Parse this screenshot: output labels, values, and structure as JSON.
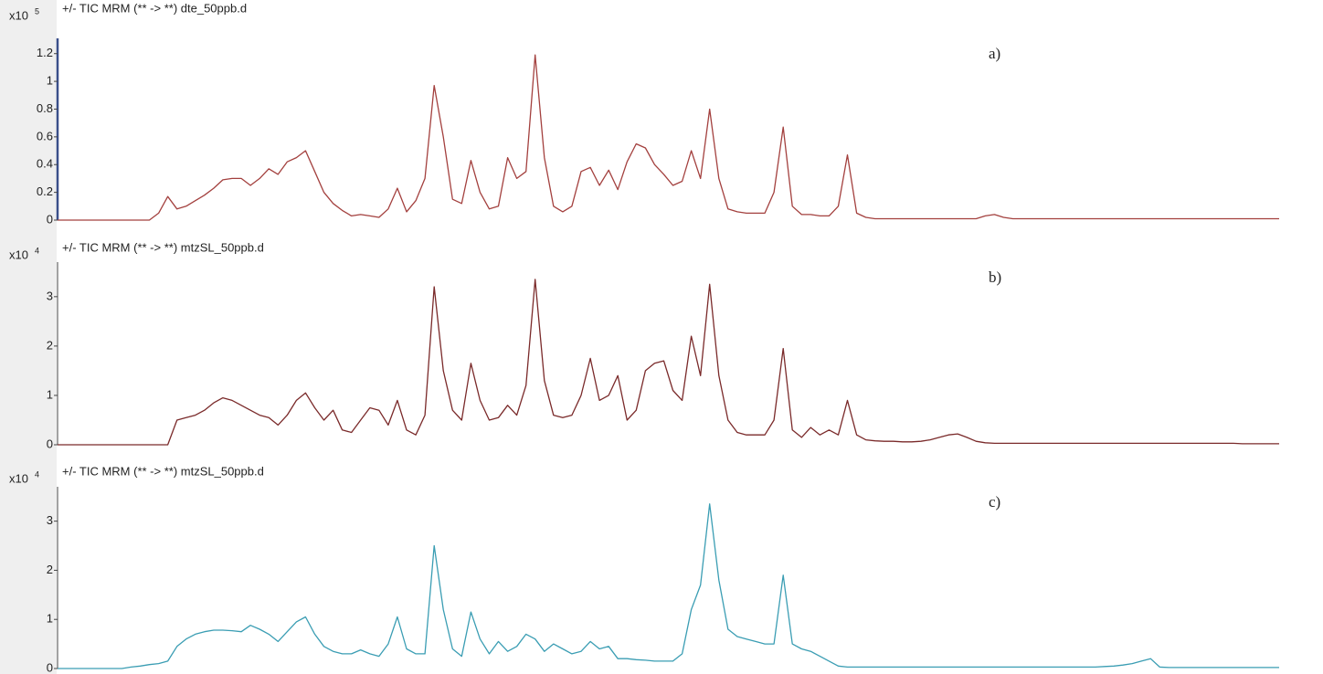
{
  "chart_data": [
    {
      "type": "line",
      "title": "+/- TIC MRM (** -> **) dte_50ppb.d",
      "y_multiplier": "x10",
      "y_exponent": 5,
      "annotation": "a)",
      "color": "#a3403e",
      "ylim": [
        0,
        1.31
      ],
      "yticks": [
        0,
        0.2,
        0.4,
        0.6,
        0.8,
        1,
        1.2
      ],
      "values": [
        0,
        0,
        0,
        0,
        0,
        0,
        0,
        0,
        0,
        0,
        0,
        0.05,
        0.17,
        0.08,
        0.1,
        0.14,
        0.18,
        0.23,
        0.29,
        0.3,
        0.3,
        0.25,
        0.3,
        0.37,
        0.33,
        0.42,
        0.45,
        0.5,
        0.35,
        0.2,
        0.12,
        0.07,
        0.03,
        0.04,
        0.03,
        0.02,
        0.08,
        0.23,
        0.06,
        0.14,
        0.3,
        0.97,
        0.6,
        0.15,
        0.12,
        0.43,
        0.2,
        0.08,
        0.1,
        0.45,
        0.3,
        0.35,
        1.19,
        0.45,
        0.1,
        0.06,
        0.1,
        0.35,
        0.38,
        0.25,
        0.36,
        0.22,
        0.42,
        0.55,
        0.52,
        0.4,
        0.33,
        0.25,
        0.28,
        0.5,
        0.3,
        0.8,
        0.3,
        0.08,
        0.06,
        0.05,
        0.05,
        0.05,
        0.2,
        0.67,
        0.1,
        0.04,
        0.04,
        0.03,
        0.03,
        0.1,
        0.47,
        0.05,
        0.02,
        0.01,
        0.01,
        0.01,
        0.01,
        0.01,
        0.01,
        0.01,
        0.01,
        0.01,
        0.01,
        0.01,
        0.01,
        0.03,
        0.04,
        0.02,
        0.01,
        0.01,
        0.01,
        0.01,
        0.01,
        0.01,
        0.01,
        0.01,
        0.01,
        0.01,
        0.01,
        0.01,
        0.01,
        0.01,
        0.01,
        0.01,
        0.01,
        0.01,
        0.01,
        0.01,
        0.01,
        0.01,
        0.01,
        0.01,
        0.01,
        0.01,
        0.01,
        0.01,
        0.01,
        0.01
      ]
    },
    {
      "type": "line",
      "title": "+/- TIC MRM (** -> **) mtzSL_50ppb.d",
      "y_multiplier": "x10",
      "y_exponent": 4,
      "annotation": "b)",
      "color": "#7a2a2a",
      "ylim": [
        0,
        3.7
      ],
      "yticks": [
        0,
        1,
        2,
        3
      ],
      "values": [
        0,
        0,
        0,
        0,
        0,
        0,
        0,
        0,
        0,
        0,
        0,
        0,
        0,
        0.5,
        0.55,
        0.6,
        0.7,
        0.85,
        0.95,
        0.9,
        0.8,
        0.7,
        0.6,
        0.55,
        0.4,
        0.6,
        0.9,
        1.05,
        0.75,
        0.5,
        0.7,
        0.3,
        0.25,
        0.5,
        0.75,
        0.7,
        0.4,
        0.9,
        0.3,
        0.2,
        0.6,
        3.2,
        1.5,
        0.7,
        0.5,
        1.65,
        0.9,
        0.5,
        0.55,
        0.8,
        0.6,
        1.2,
        3.35,
        1.3,
        0.6,
        0.55,
        0.6,
        1.0,
        1.75,
        0.9,
        1.0,
        1.4,
        0.5,
        0.7,
        1.5,
        1.65,
        1.7,
        1.1,
        0.9,
        2.2,
        1.4,
        3.25,
        1.4,
        0.5,
        0.25,
        0.2,
        0.2,
        0.2,
        0.5,
        1.95,
        0.3,
        0.15,
        0.35,
        0.2,
        0.3,
        0.2,
        0.9,
        0.2,
        0.1,
        0.08,
        0.07,
        0.07,
        0.06,
        0.06,
        0.07,
        0.1,
        0.15,
        0.2,
        0.22,
        0.15,
        0.07,
        0.04,
        0.03,
        0.03,
        0.03,
        0.03,
        0.03,
        0.03,
        0.03,
        0.03,
        0.03,
        0.03,
        0.03,
        0.03,
        0.03,
        0.03,
        0.03,
        0.03,
        0.03,
        0.03,
        0.03,
        0.03,
        0.03,
        0.03,
        0.03,
        0.03,
        0.03,
        0.03,
        0.03,
        0.02,
        0.02,
        0.02,
        0.02,
        0.02
      ]
    },
    {
      "type": "line",
      "title": "+/- TIC MRM (** -> **) mtzSL_50ppb.d",
      "y_multiplier": "x10",
      "y_exponent": 4,
      "annotation": "c)",
      "color": "#3a9db3",
      "ylim": [
        0,
        3.7
      ],
      "yticks": [
        0,
        1,
        2,
        3
      ],
      "values": [
        0,
        0,
        0,
        0,
        0,
        0,
        0,
        0,
        0.03,
        0.05,
        0.08,
        0.1,
        0.15,
        0.45,
        0.6,
        0.7,
        0.75,
        0.78,
        0.78,
        0.77,
        0.75,
        0.88,
        0.8,
        0.7,
        0.55,
        0.75,
        0.95,
        1.05,
        0.7,
        0.45,
        0.35,
        0.3,
        0.3,
        0.38,
        0.3,
        0.25,
        0.5,
        1.05,
        0.4,
        0.3,
        0.3,
        2.5,
        1.2,
        0.4,
        0.25,
        1.15,
        0.6,
        0.3,
        0.55,
        0.35,
        0.45,
        0.7,
        0.6,
        0.35,
        0.5,
        0.4,
        0.3,
        0.35,
        0.55,
        0.4,
        0.45,
        0.2,
        0.2,
        0.18,
        0.17,
        0.15,
        0.15,
        0.15,
        0.3,
        1.2,
        1.7,
        3.35,
        1.8,
        0.8,
        0.65,
        0.6,
        0.55,
        0.5,
        0.5,
        1.9,
        0.5,
        0.4,
        0.35,
        0.25,
        0.15,
        0.05,
        0.03,
        0.03,
        0.03,
        0.03,
        0.03,
        0.03,
        0.03,
        0.03,
        0.03,
        0.03,
        0.03,
        0.03,
        0.03,
        0.03,
        0.03,
        0.03,
        0.03,
        0.03,
        0.03,
        0.03,
        0.03,
        0.03,
        0.03,
        0.03,
        0.03,
        0.03,
        0.03,
        0.03,
        0.04,
        0.05,
        0.07,
        0.1,
        0.15,
        0.2,
        0.03,
        0.02,
        0.02,
        0.02,
        0.02,
        0.02,
        0.02,
        0.02,
        0.02,
        0.02,
        0.02,
        0.02,
        0.02,
        0.02
      ]
    }
  ]
}
